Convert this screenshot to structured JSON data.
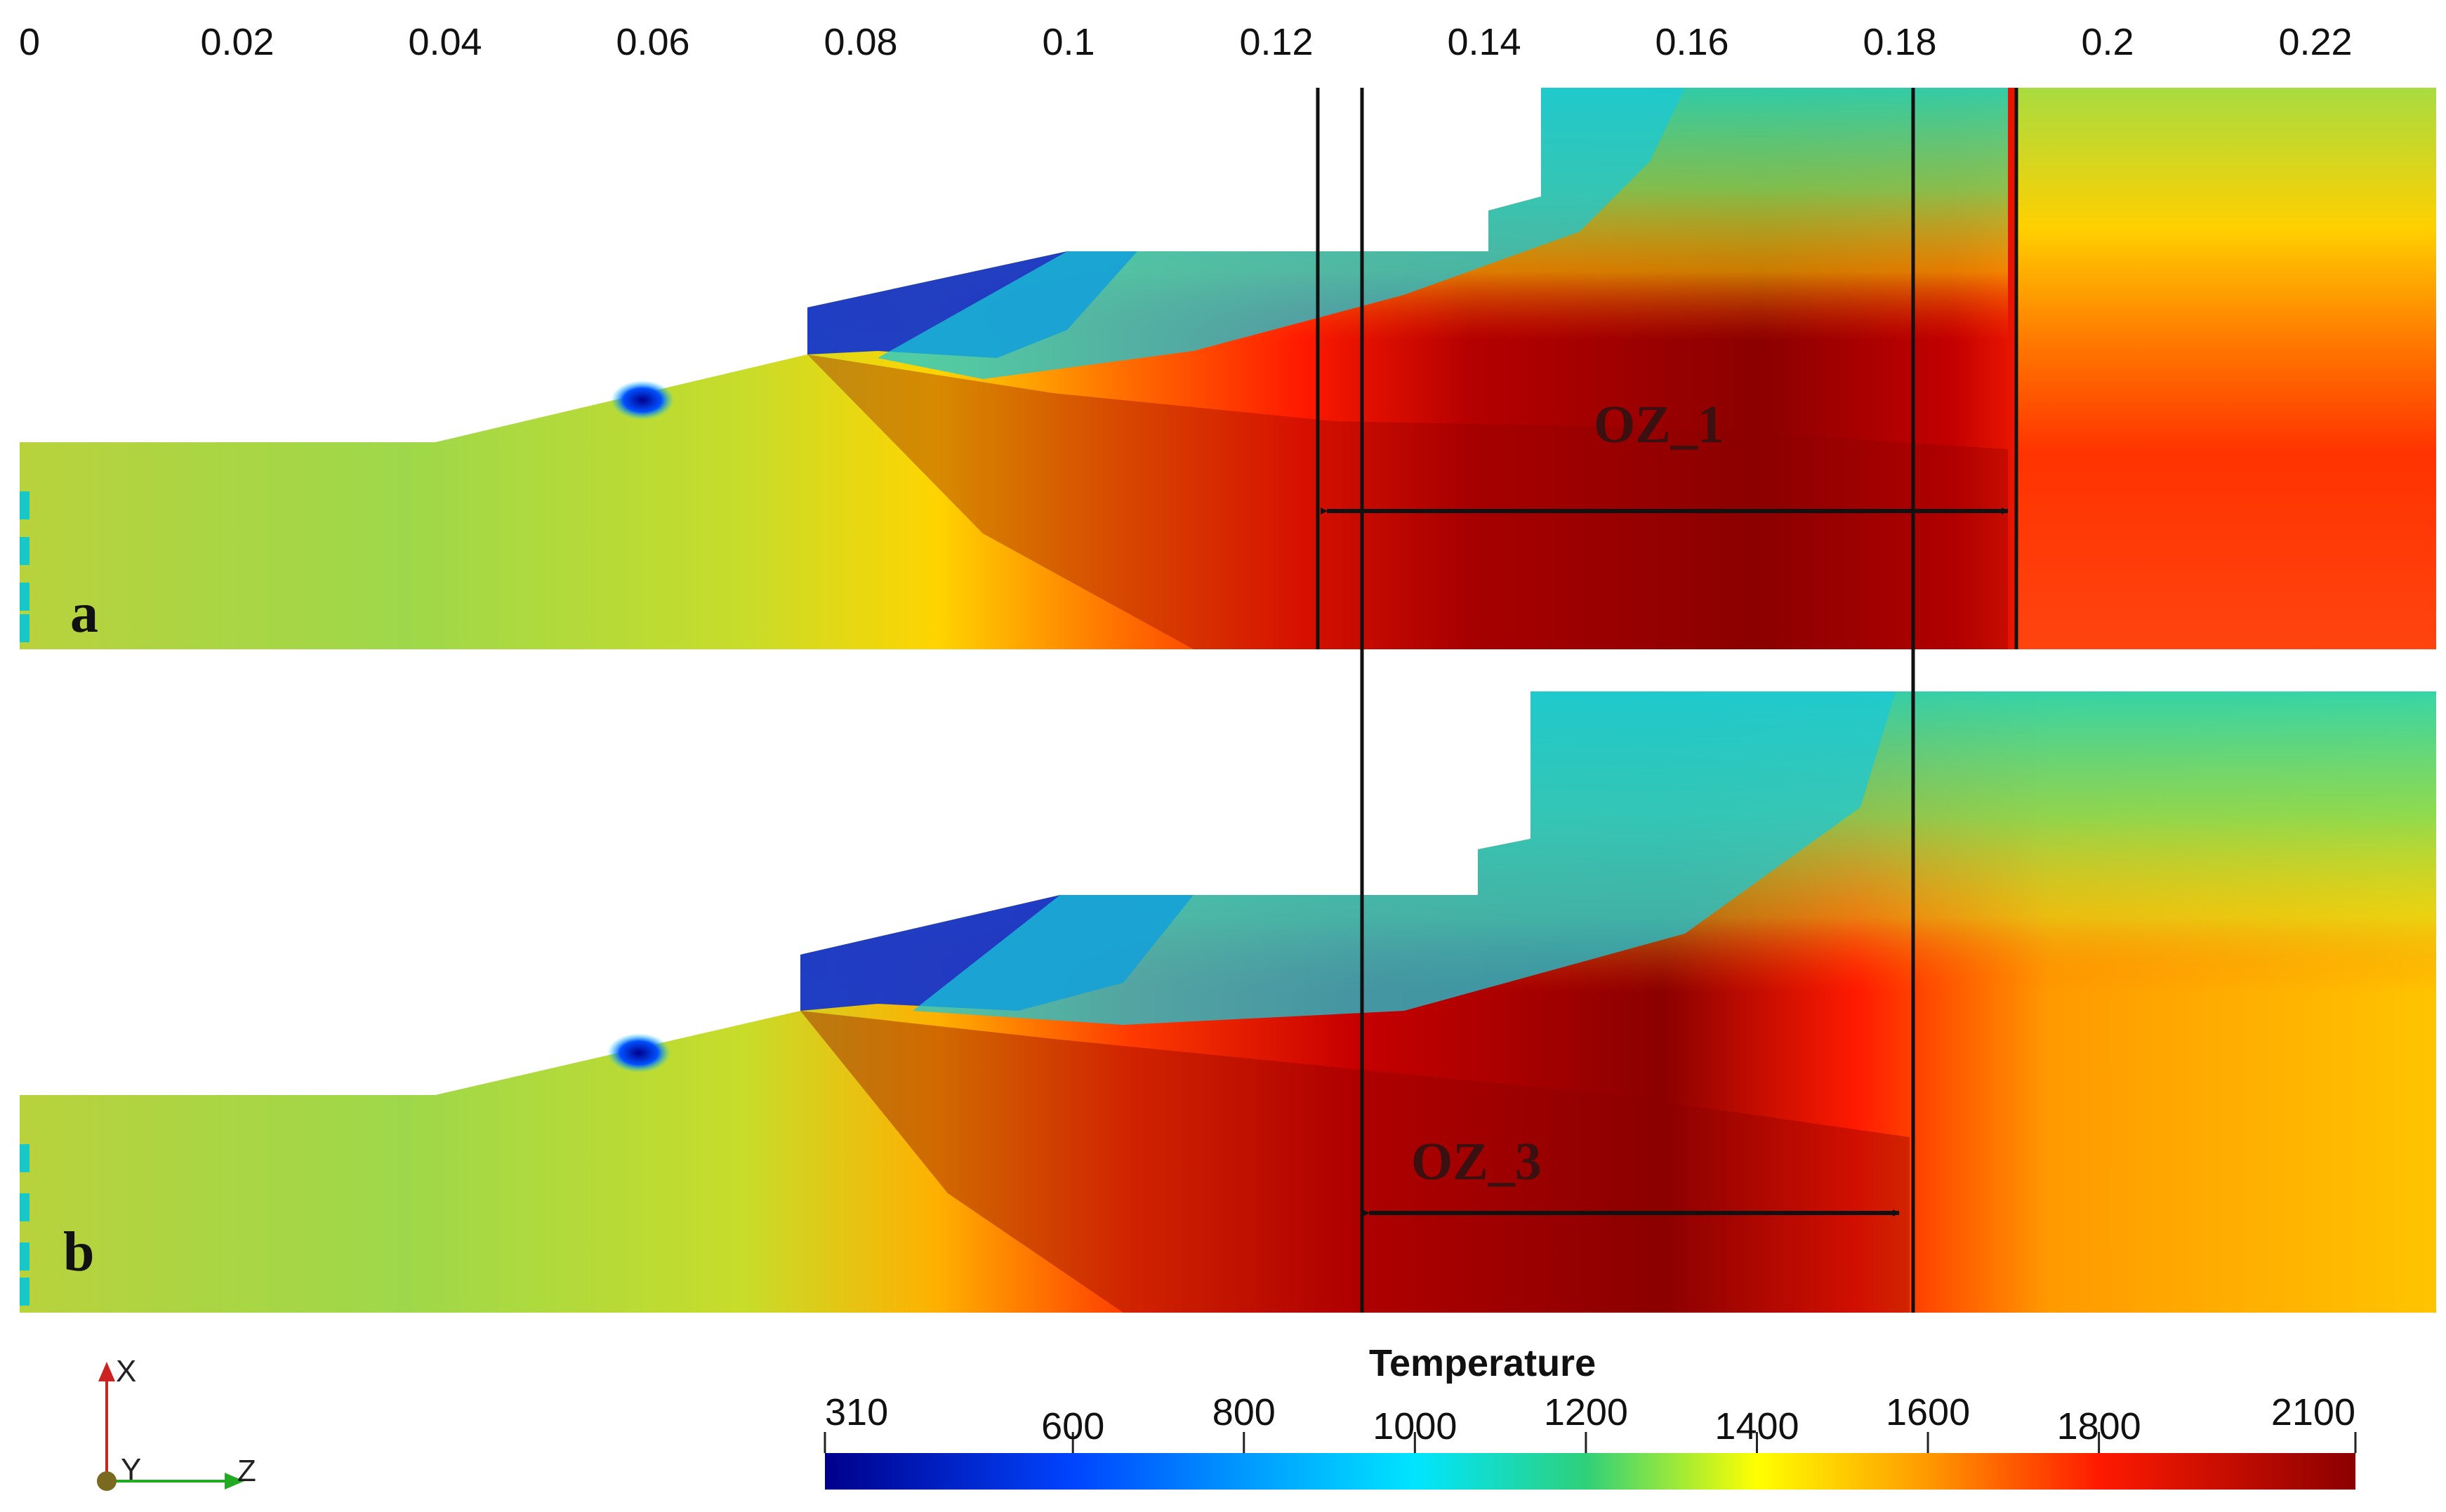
{
  "top_axis": {
    "ticks": [
      "0",
      "0.02",
      "0.04",
      "0.06",
      "0.08",
      "0.1",
      "0.12",
      "0.14",
      "0.16",
      "0.18",
      "0.2",
      "0.22"
    ]
  },
  "panels": [
    {
      "letter": "a",
      "zone_label": "OZ_1"
    },
    {
      "letter": "b",
      "zone_label": "OZ_3"
    }
  ],
  "colorbar": {
    "title": "Temperature",
    "labels": [
      "310",
      "600",
      "800",
      "1000",
      "1200",
      "1400",
      "1600",
      "1800",
      "2100"
    ],
    "stops": [
      {
        "value": 310,
        "color": "#00008b"
      },
      {
        "value": 600,
        "color": "#0044ff"
      },
      {
        "value": 800,
        "color": "#0099ff"
      },
      {
        "value": 1000,
        "color": "#00e5ff"
      },
      {
        "value": 1200,
        "color": "#2fd07a"
      },
      {
        "value": 1400,
        "color": "#ffff00"
      },
      {
        "value": 1600,
        "color": "#ff9900"
      },
      {
        "value": 1800,
        "color": "#ff1a00"
      },
      {
        "value": 2100,
        "color": "#8b0000"
      }
    ]
  },
  "axes_triad": {
    "x": "X",
    "y": "Y",
    "z": "Z"
  }
}
